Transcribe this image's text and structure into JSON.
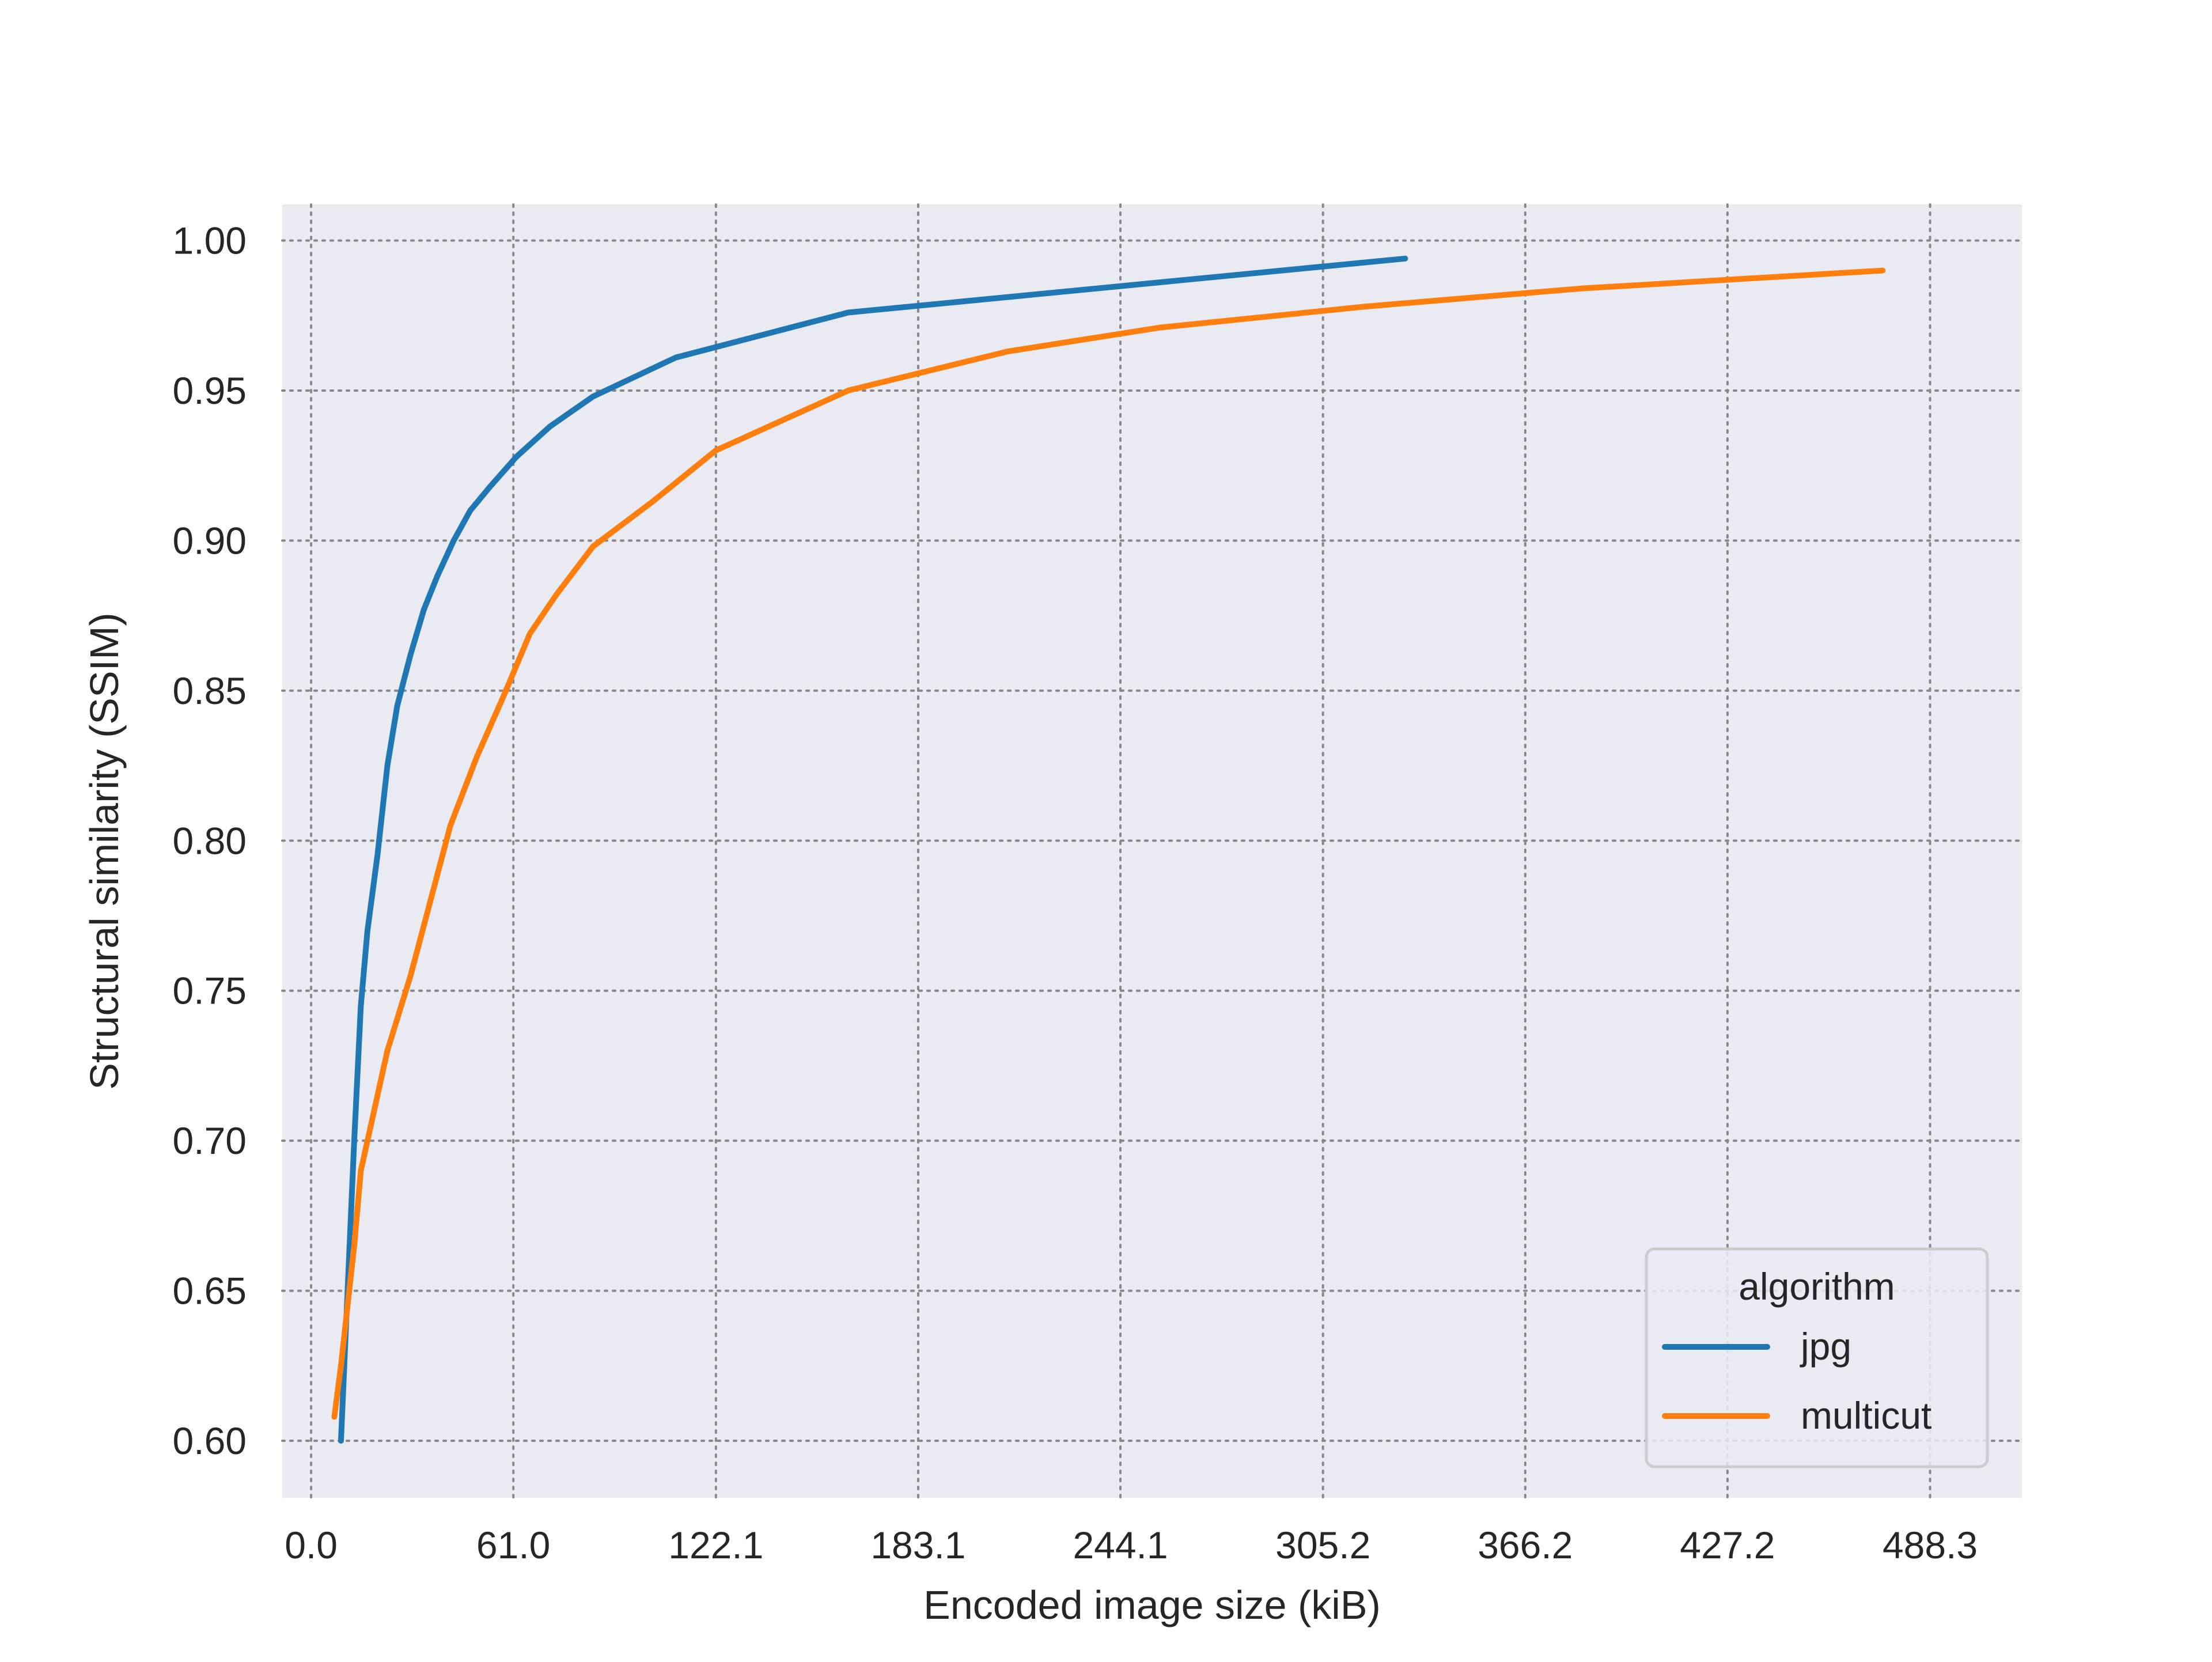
{
  "chart_data": {
    "type": "line",
    "title": "",
    "xlabel": "Encoded image size (kiB)",
    "ylabel": "Structural similarity (SSIM)",
    "xlim": [
      -8.7,
      516
    ],
    "ylim": [
      0.581,
      1.012
    ],
    "x_ticks": [
      0.0,
      61.0,
      122.1,
      183.1,
      244.1,
      305.2,
      366.2,
      427.2,
      488.3
    ],
    "x_tick_labels": [
      "0.0",
      "61.0",
      "122.1",
      "183.1",
      "244.1",
      "305.2",
      "366.2",
      "427.2",
      "488.3"
    ],
    "y_ticks": [
      0.6,
      0.65,
      0.7,
      0.75,
      0.8,
      0.85,
      0.9,
      0.95,
      1.0
    ],
    "y_tick_labels": [
      "0.60",
      "0.65",
      "0.70",
      "0.75",
      "0.80",
      "0.85",
      "0.90",
      "0.95",
      "1.00"
    ],
    "grid": true,
    "background": "#eaeaf2",
    "grid_color": "#888888",
    "legend": {
      "title": "algorithm",
      "placement": "lower-right"
    },
    "series": [
      {
        "name": "jpg",
        "color": "#1f77b4",
        "x": [
          9,
          11,
          13,
          15,
          17,
          20,
          23,
          26,
          30,
          34,
          38,
          43,
          48,
          54,
          62,
          72,
          85,
          110,
          162,
          330
        ],
        "y": [
          0.6,
          0.65,
          0.7,
          0.745,
          0.77,
          0.795,
          0.825,
          0.845,
          0.862,
          0.877,
          0.888,
          0.9,
          0.91,
          0.918,
          0.928,
          0.938,
          0.948,
          0.961,
          0.976,
          0.994
        ]
      },
      {
        "name": "multicut",
        "color": "#ff7f0e",
        "x": [
          7,
          9,
          11,
          13,
          15,
          18,
          23,
          30,
          36,
          42,
          50,
          58,
          66,
          74,
          85,
          103,
          122,
          162,
          210,
          256,
          318,
          383,
          474
        ],
        "y": [
          0.608,
          0.625,
          0.645,
          0.665,
          0.69,
          0.705,
          0.73,
          0.755,
          0.78,
          0.805,
          0.828,
          0.848,
          0.869,
          0.882,
          0.898,
          0.913,
          0.93,
          0.95,
          0.963,
          0.971,
          0.978,
          0.984,
          0.99
        ]
      }
    ]
  }
}
